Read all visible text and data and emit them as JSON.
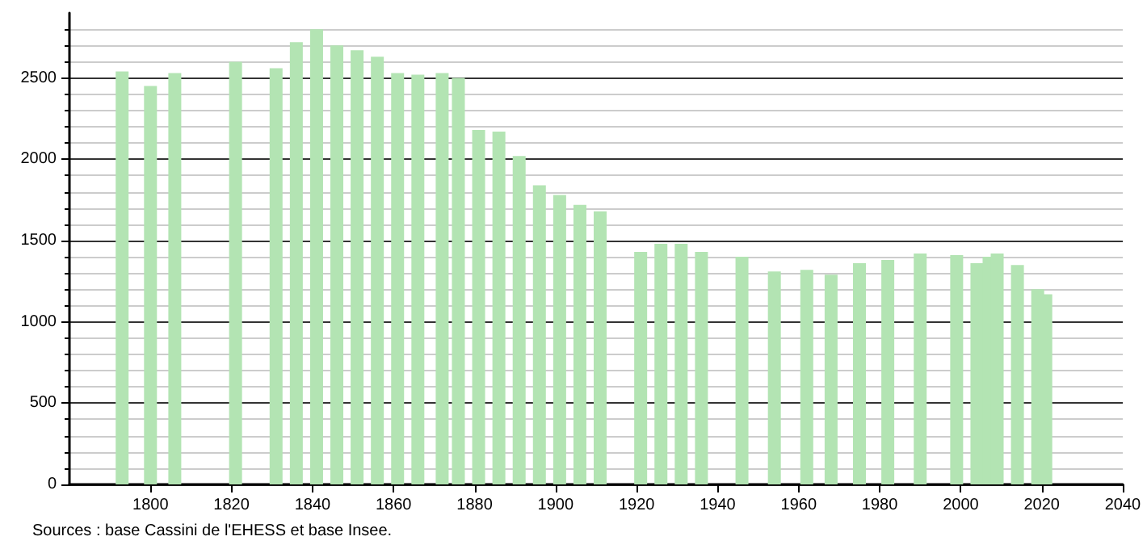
{
  "chart_data": {
    "type": "bar",
    "x": [
      1793,
      1800,
      1806,
      1821,
      1831,
      1836,
      1841,
      1846,
      1851,
      1856,
      1861,
      1866,
      1872,
      1876,
      1881,
      1886,
      1891,
      1896,
      1901,
      1906,
      1911,
      1921,
      1926,
      1931,
      1936,
      1946,
      1954,
      1962,
      1968,
      1975,
      1982,
      1990,
      1999,
      2004,
      2006,
      2007,
      2009,
      2014,
      2019,
      2021
    ],
    "values": [
      2540,
      2450,
      2530,
      2600,
      2560,
      2720,
      2800,
      2700,
      2670,
      2630,
      2530,
      2520,
      2530,
      2500,
      2180,
      2170,
      2020,
      1840,
      1780,
      1720,
      1680,
      1430,
      1480,
      1480,
      1430,
      1400,
      1310,
      1320,
      1290,
      1360,
      1380,
      1420,
      1410,
      1360,
      null,
      1400,
      1420,
      1350,
      1200,
      1170
    ],
    "color": "#b3e4b3",
    "xlim": [
      1780,
      2040
    ],
    "xticks": [
      1800,
      1820,
      1840,
      1860,
      1880,
      1900,
      1920,
      1940,
      1960,
      1980,
      2000,
      2020,
      2040
    ],
    "ylim": [
      0,
      2900
    ],
    "yticks": [
      0,
      500,
      1000,
      1500,
      2000,
      2500
    ],
    "grid": "y",
    "annotations": [
      "Sources : base Cassini de l'EHESS et base Insee."
    ]
  }
}
